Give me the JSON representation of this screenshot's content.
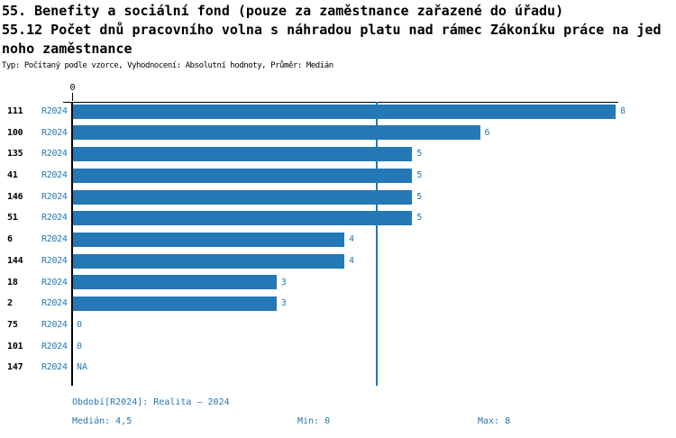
{
  "header": {
    "line1": "55. Benefity a sociální fond (pouze za zaměstnance zařazené do úřadu)",
    "line2": "55.12 Počet dnů pracovního volna s náhradou platu nad rámec Zákoníku práce na jed",
    "line3": "noho zaměstnance",
    "meta": "Typ: Počítaný podle vzorce, Vyhodnocení: Absolutní hodnoty, Průměr: Medián"
  },
  "chart_data": {
    "type": "bar",
    "orientation": "horizontal",
    "title": "55.12 Počet dnů pracovního volna s náhradou platu nad rámec Zákoníku práce na jednoho zaměstnance",
    "categories": [
      "111",
      "100",
      "135",
      "41",
      "146",
      "51",
      "6",
      "144",
      "18",
      "2",
      "75",
      "101",
      "147"
    ],
    "series_period": "R2024",
    "values": [
      8,
      6,
      5,
      5,
      5,
      5,
      4,
      4,
      3,
      3,
      0,
      0,
      null
    ],
    "value_labels": [
      "8",
      "6",
      "5",
      "5",
      "5",
      "5",
      "4",
      "4",
      "3",
      "3",
      "0",
      "0",
      "NA"
    ],
    "x_tick_labels": [
      "0"
    ],
    "xlim": [
      0,
      8.1
    ],
    "median_line_value": 4.5,
    "grid": false,
    "legend_position": "none",
    "bar_color": "#2478b5"
  },
  "footer": {
    "period_info": "Období[R2024]: Realita – 2024",
    "median": "Medián: 4,5",
    "min": "Min: 0",
    "max": "Max: 8"
  },
  "colors": {
    "accent": "#2478b5",
    "text": "#000000",
    "background": "#ffffff"
  }
}
